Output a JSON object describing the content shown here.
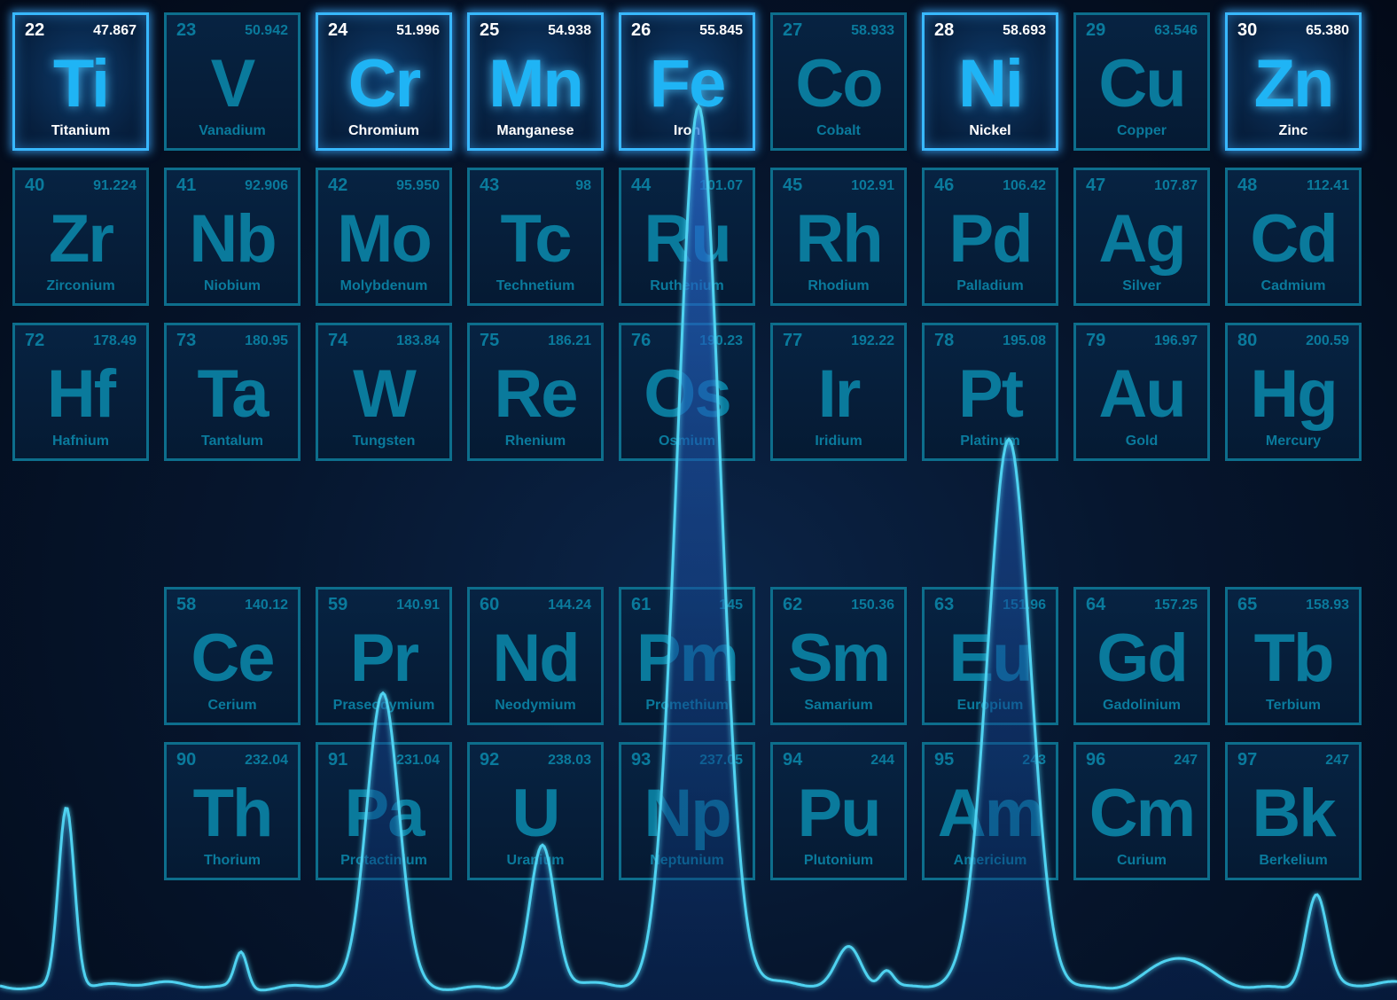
{
  "rows": [
    [
      {
        "num": "22",
        "mass": "47.867",
        "sym": "Ti",
        "name": "Titanium",
        "lit": true
      },
      {
        "num": "23",
        "mass": "50.942",
        "sym": "V",
        "name": "Vanadium",
        "lit": false
      },
      {
        "num": "24",
        "mass": "51.996",
        "sym": "Cr",
        "name": "Chromium",
        "lit": true
      },
      {
        "num": "25",
        "mass": "54.938",
        "sym": "Mn",
        "name": "Manganese",
        "lit": true
      },
      {
        "num": "26",
        "mass": "55.845",
        "sym": "Fe",
        "name": "Iron",
        "lit": true
      },
      {
        "num": "27",
        "mass": "58.933",
        "sym": "Co",
        "name": "Cobalt",
        "lit": false
      },
      {
        "num": "28",
        "mass": "58.693",
        "sym": "Ni",
        "name": "Nickel",
        "lit": true
      },
      {
        "num": "29",
        "mass": "63.546",
        "sym": "Cu",
        "name": "Copper",
        "lit": false
      },
      {
        "num": "30",
        "mass": "65.380",
        "sym": "Zn",
        "name": "Zinc",
        "lit": true
      }
    ],
    [
      {
        "num": "40",
        "mass": "91.224",
        "sym": "Zr",
        "name": "Zirconium",
        "lit": false
      },
      {
        "num": "41",
        "mass": "92.906",
        "sym": "Nb",
        "name": "Niobium",
        "lit": false
      },
      {
        "num": "42",
        "mass": "95.950",
        "sym": "Mo",
        "name": "Molybdenum",
        "lit": false
      },
      {
        "num": "43",
        "mass": "98",
        "sym": "Tc",
        "name": "Technetium",
        "lit": false
      },
      {
        "num": "44",
        "mass": "101.07",
        "sym": "Ru",
        "name": "Ruthenium",
        "lit": false
      },
      {
        "num": "45",
        "mass": "102.91",
        "sym": "Rh",
        "name": "Rhodium",
        "lit": false
      },
      {
        "num": "46",
        "mass": "106.42",
        "sym": "Pd",
        "name": "Palladium",
        "lit": false
      },
      {
        "num": "47",
        "mass": "107.87",
        "sym": "Ag",
        "name": "Silver",
        "lit": false
      },
      {
        "num": "48",
        "mass": "112.41",
        "sym": "Cd",
        "name": "Cadmium",
        "lit": false
      }
    ],
    [
      {
        "num": "72",
        "mass": "178.49",
        "sym": "Hf",
        "name": "Hafnium",
        "lit": false
      },
      {
        "num": "73",
        "mass": "180.95",
        "sym": "Ta",
        "name": "Tantalum",
        "lit": false
      },
      {
        "num": "74",
        "mass": "183.84",
        "sym": "W",
        "name": "Tungsten",
        "lit": false
      },
      {
        "num": "75",
        "mass": "186.21",
        "sym": "Re",
        "name": "Rhenium",
        "lit": false
      },
      {
        "num": "76",
        "mass": "190.23",
        "sym": "Os",
        "name": "Osmium",
        "lit": false
      },
      {
        "num": "77",
        "mass": "192.22",
        "sym": "Ir",
        "name": "Iridium",
        "lit": false
      },
      {
        "num": "78",
        "mass": "195.08",
        "sym": "Pt",
        "name": "Platinum",
        "lit": false
      },
      {
        "num": "79",
        "mass": "196.97",
        "sym": "Au",
        "name": "Gold",
        "lit": false
      },
      {
        "num": "80",
        "mass": "200.59",
        "sym": "Hg",
        "name": "Mercury",
        "lit": false
      }
    ],
    [
      null,
      {
        "num": "58",
        "mass": "140.12",
        "sym": "Ce",
        "name": "Cerium",
        "lit": false
      },
      {
        "num": "59",
        "mass": "140.91",
        "sym": "Pr",
        "name": "Praseodymium",
        "lit": false
      },
      {
        "num": "60",
        "mass": "144.24",
        "sym": "Nd",
        "name": "Neodymium",
        "lit": false
      },
      {
        "num": "61",
        "mass": "145",
        "sym": "Pm",
        "name": "Promethium",
        "lit": false
      },
      {
        "num": "62",
        "mass": "150.36",
        "sym": "Sm",
        "name": "Samarium",
        "lit": false
      },
      {
        "num": "63",
        "mass": "151.96",
        "sym": "Eu",
        "name": "Europium",
        "lit": false
      },
      {
        "num": "64",
        "mass": "157.25",
        "sym": "Gd",
        "name": "Gadolinium",
        "lit": false
      },
      {
        "num": "65",
        "mass": "158.93",
        "sym": "Tb",
        "name": "Terbium",
        "lit": false
      }
    ],
    [
      null,
      {
        "num": "90",
        "mass": "232.04",
        "sym": "Th",
        "name": "Thorium",
        "lit": false
      },
      {
        "num": "91",
        "mass": "231.04",
        "sym": "Pa",
        "name": "Protactinium",
        "lit": false
      },
      {
        "num": "92",
        "mass": "238.03",
        "sym": "U",
        "name": "Uranium",
        "lit": false
      },
      {
        "num": "93",
        "mass": "237.05",
        "sym": "Np",
        "name": "Neptunium",
        "lit": false
      },
      {
        "num": "94",
        "mass": "244",
        "sym": "Pu",
        "name": "Plutonium",
        "lit": false
      },
      {
        "num": "95",
        "mass": "243",
        "sym": "Am",
        "name": "Americium",
        "lit": false
      },
      {
        "num": "96",
        "mass": "247",
        "sym": "Cm",
        "name": "Curium",
        "lit": false
      },
      {
        "num": "97",
        "mass": "247",
        "sym": "Bk",
        "name": "Berkelium",
        "lit": false
      }
    ]
  ],
  "colors": {
    "tile_border": "#0d6e8c",
    "tile_text": "#0a7a9c",
    "lit_border": "#38b8ff",
    "lit_symbol": "#1fb4f5",
    "spectrum_line": "#4fd2f0",
    "background": "#040d1e"
  }
}
